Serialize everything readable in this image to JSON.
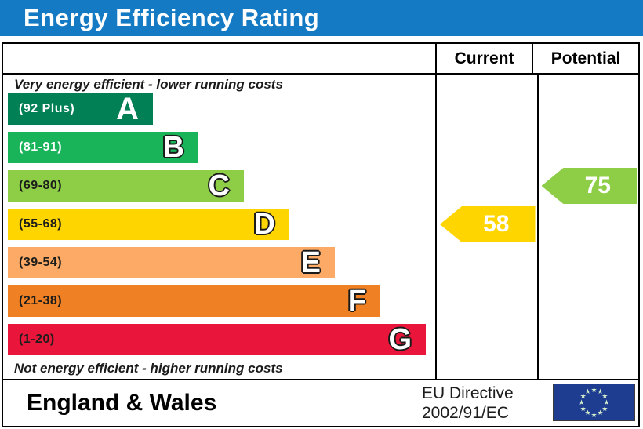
{
  "title": "Energy Efficiency Rating",
  "colors": {
    "title_bar": "#147ac3",
    "border": "#000000"
  },
  "header": {
    "current": "Current",
    "potential": "Potential"
  },
  "chart_data": {
    "type": "bar",
    "title": "Energy Efficiency Rating",
    "top_caption": "Very energy efficient - lower running costs",
    "bottom_caption": "Not energy efficient - higher running costs",
    "bands": [
      {
        "letter": "A",
        "range": "(92 Plus)",
        "min": 92,
        "max": 100,
        "color": "#008054",
        "range_text_color": "#ffffff"
      },
      {
        "letter": "B",
        "range": "(81-91)",
        "min": 81,
        "max": 91,
        "color": "#19b459",
        "range_text_color": "#ffffff"
      },
      {
        "letter": "C",
        "range": "(69-80)",
        "min": 69,
        "max": 80,
        "color": "#8dce46",
        "range_text_color": "#1d1d1b"
      },
      {
        "letter": "D",
        "range": "(55-68)",
        "min": 55,
        "max": 68,
        "color": "#ffd500",
        "range_text_color": "#1d1d1b"
      },
      {
        "letter": "E",
        "range": "(39-54)",
        "min": 39,
        "max": 54,
        "color": "#fcaa65",
        "range_text_color": "#1d1d1b"
      },
      {
        "letter": "F",
        "range": "(21-38)",
        "min": 21,
        "max": 38,
        "color": "#ef8023",
        "range_text_color": "#1d1d1b"
      },
      {
        "letter": "G",
        "range": "(1-20)",
        "min": 1,
        "max": 20,
        "color": "#e9153b",
        "range_text_color": "#1d1d1b"
      }
    ],
    "current": {
      "value": 58,
      "band": "D",
      "color": "#ffd500"
    },
    "potential": {
      "value": 75,
      "band": "C",
      "color": "#8dce46"
    }
  },
  "footer": {
    "region": "England & Wales",
    "directive_line1": "EU Directive",
    "directive_line2": "2002/91/EC",
    "eu_flag": {
      "background": "#1e3d90",
      "star_color": "#cfe9c9",
      "star_count": 12
    }
  }
}
